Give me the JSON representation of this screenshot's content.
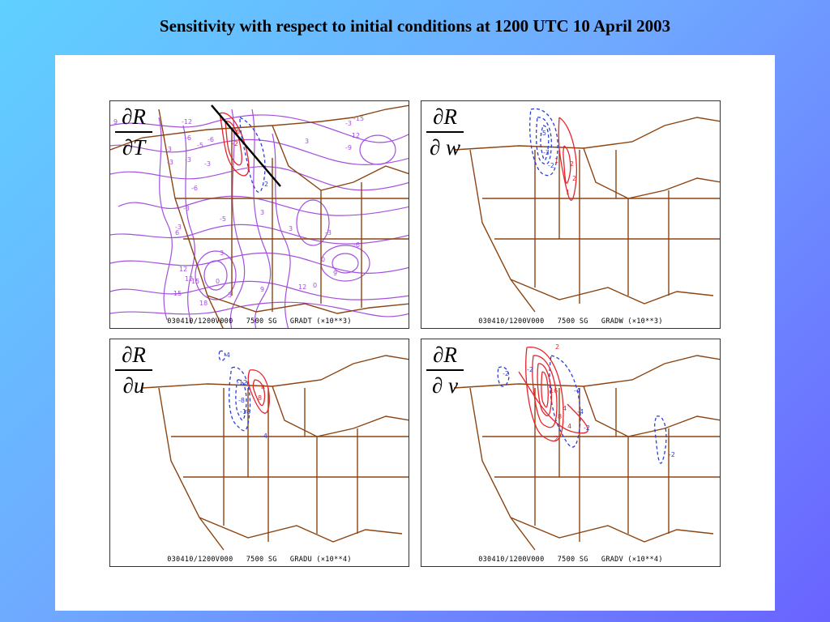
{
  "title": "Sensitivity with respect to initial conditions at 1200 UTC 10 April 2003",
  "panels": [
    {
      "num": "∂R",
      "den": "∂T",
      "footer": "030410/1200V000   7500 SG   GRADT (×10**3)"
    },
    {
      "num": "∂R",
      "den": "∂ w",
      "footer": "030410/1200V000   7500 SG   GRADW (×10**3)"
    },
    {
      "num": "∂R",
      "den": "∂u",
      "footer": "030410/1200V000   7500 SG   GRADU (×10**4)"
    },
    {
      "num": "∂R",
      "den": "∂ v",
      "footer": "030410/1200V000   7500 SG   GRADV (×10**4)"
    }
  ],
  "contour_labels": {
    "T": [
      "9",
      "-12",
      "-15",
      "-6",
      "-5",
      "-6",
      "-3",
      "3",
      "-3",
      "-3",
      "-12",
      "-9",
      "-3",
      "-6",
      "-3",
      "3",
      "-3",
      "3",
      "-5",
      "-3",
      "0",
      "9",
      "6",
      "3",
      "12",
      "9",
      "12",
      "15",
      "3",
      "12",
      "15",
      "18",
      "-3",
      "0",
      "-6",
      "-2",
      "2",
      "6",
      "1",
      "0"
    ],
    "W": [
      "-5",
      "-3",
      "-2",
      "1",
      "2",
      "1",
      "2"
    ],
    "U": [
      "-4",
      "-12",
      "-8",
      "8",
      "-18",
      "-4",
      "4"
    ],
    "V": [
      "-2",
      "-2",
      "2",
      "16",
      "4",
      "8",
      "4",
      "2",
      "-4",
      "-4",
      "-2",
      "-2"
    ]
  },
  "colors": {
    "map_outline": "#8b4513",
    "positive_contour": "#e8232a",
    "negative_contour": "#2a3fd6",
    "temperature_contour": "#a34fe0",
    "background_gradient_start": "#5fd0ff",
    "background_gradient_end": "#6a63ff"
  }
}
